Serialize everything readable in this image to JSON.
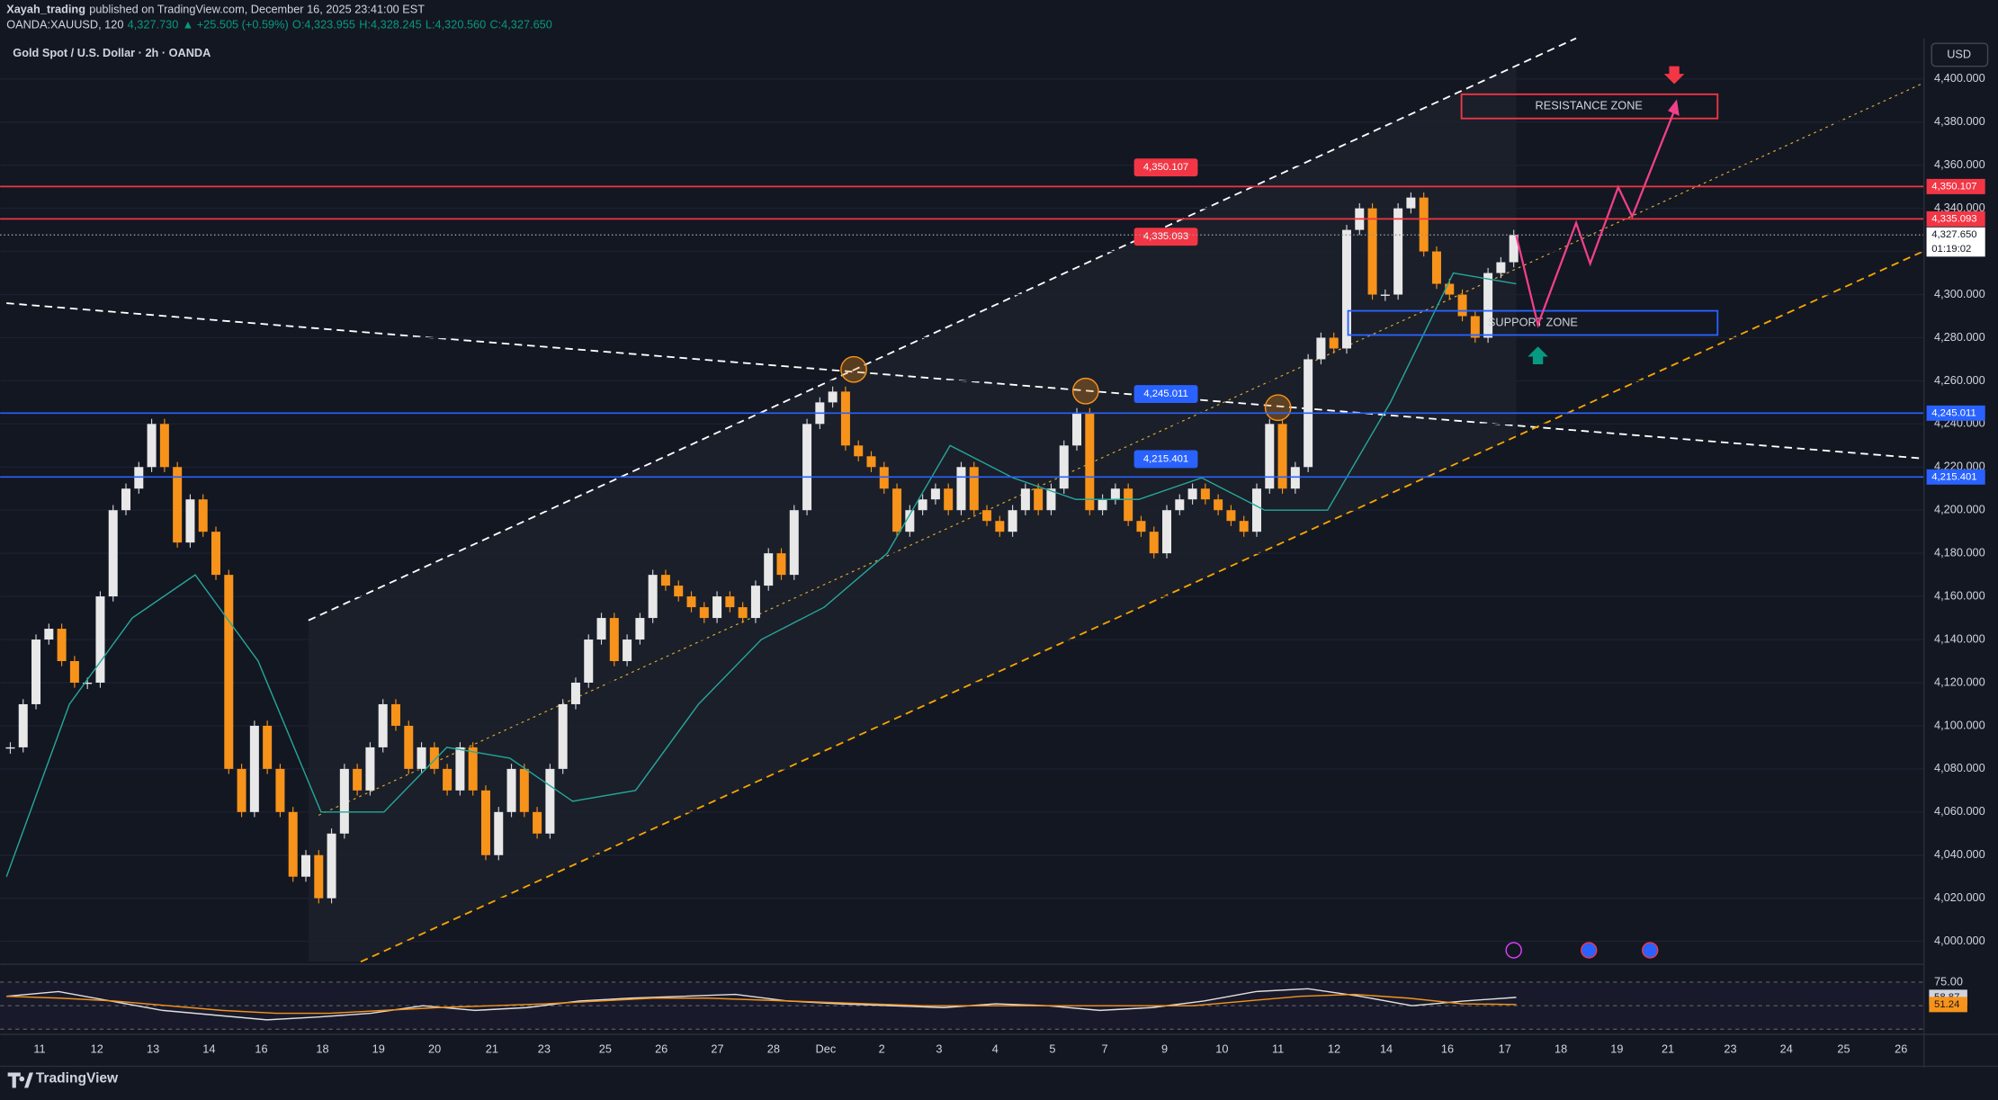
{
  "header": {
    "publisher": "Xayah_trading",
    "published": "published on TradingView.com, December 16, 2025 23:41:00 EST",
    "symbol": "OANDA:XAUUSD, 120",
    "last": "4,327.730",
    "change": "▲ +25.505 (+0.59%)",
    "open": "O:4,323.955",
    "high": "H:4,328.245",
    "low": "L:4,320.560",
    "close": "C:4,327.650"
  },
  "chart": {
    "title": "Gold Spot / U.S. Dollar · 2h · OANDA",
    "currency": "USD",
    "yticks": [
      {
        "value": 4000,
        "label": "4,000.000"
      },
      {
        "value": 4020,
        "label": "4,020.000"
      },
      {
        "value": 4040,
        "label": "4,040.000"
      },
      {
        "value": 4060,
        "label": "4,060.000"
      },
      {
        "value": 4080,
        "label": "4,080.000"
      },
      {
        "value": 4100,
        "label": "4,100.000"
      },
      {
        "value": 4120,
        "label": "4,120.000"
      },
      {
        "value": 4140,
        "label": "4,140.000"
      },
      {
        "value": 4160,
        "label": "4,160.000"
      },
      {
        "value": 4180,
        "label": "4,180.000"
      },
      {
        "value": 4200,
        "label": "4,200.000"
      },
      {
        "value": 4220,
        "label": "4,220.000"
      },
      {
        "value": 4240,
        "label": "4,240.000"
      },
      {
        "value": 4260,
        "label": "4,260.000"
      },
      {
        "value": 4280,
        "label": "4,280.000"
      },
      {
        "value": 4300,
        "label": "4,300.000"
      },
      {
        "value": 4320,
        "label": "4,320.000"
      },
      {
        "value": 4340,
        "label": "4,340.000"
      },
      {
        "value": 4360,
        "label": "4,360.000"
      },
      {
        "value": 4380,
        "label": "4,380.000"
      },
      {
        "value": 4400,
        "label": "4,400.000"
      }
    ],
    "levels": [
      {
        "value": 4350.107,
        "label": "4,350.107",
        "color": "#f23645"
      },
      {
        "value": 4335.093,
        "label": "4,335.093",
        "color": "#f23645"
      },
      {
        "value": 4245.011,
        "label": "4,245.011",
        "color": "#2962ff"
      },
      {
        "value": 4215.401,
        "label": "4,215.401",
        "color": "#2962ff"
      }
    ],
    "last_price": {
      "value": 4327.65,
      "label": "4,327.650"
    },
    "countdown": "01:19:02",
    "resistance": "RESISTANCE ZONE",
    "support": "SUPPORT ZONE",
    "closes": [
      4090,
      4110,
      4140,
      4145,
      4130,
      4120,
      4120,
      4160,
      4200,
      4210,
      4220,
      4240,
      4220,
      4185,
      4205,
      4190,
      4170,
      4080,
      4060,
      4100,
      4080,
      4060,
      4030,
      4040,
      4020,
      4050,
      4080,
      4070,
      4090,
      4110,
      4100,
      4080,
      4090,
      4080,
      4070,
      4090,
      4070,
      4040,
      4060,
      4080,
      4060,
      4050,
      4080,
      4110,
      4120,
      4140,
      4150,
      4130,
      4140,
      4150,
      4170,
      4165,
      4160,
      4155,
      4150,
      4160,
      4155,
      4150,
      4165,
      4180,
      4170,
      4200,
      4240,
      4250,
      4255,
      4230,
      4225,
      4220,
      4210,
      4190,
      4200,
      4205,
      4210,
      4200,
      4220,
      4200,
      4195,
      4190,
      4200,
      4210,
      4200,
      4210,
      4230,
      4245,
      4200,
      4205,
      4210,
      4195,
      4190,
      4180,
      4200,
      4205,
      4210,
      4205,
      4200,
      4195,
      4190,
      4210,
      4240,
      4210,
      4220,
      4270,
      4280,
      4275,
      4330,
      4340,
      4300,
      4300,
      4340,
      4345,
      4320,
      4305,
      4300,
      4290,
      4280,
      4310,
      4315,
      4327.65
    ],
    "ema": [
      4030,
      4110,
      4150,
      4170,
      4130,
      4060,
      4060,
      4090,
      4085,
      4065,
      4070,
      4110,
      4140,
      4155,
      4180,
      4230,
      4215,
      4205,
      4205,
      4215,
      4200,
      4200,
      4250,
      4310,
      4305
    ],
    "x_labels": [
      "11",
      "12",
      "13",
      "14",
      "16",
      "18",
      "19",
      "20",
      "21",
      "23",
      "25",
      "26",
      "27",
      "28",
      "Dec",
      "2",
      "3",
      "4",
      "5",
      "7",
      "9",
      "10",
      "11",
      "12",
      "14",
      "16",
      "17",
      "18",
      "19",
      "21",
      "23",
      "24",
      "25",
      "26"
    ]
  },
  "rsi": {
    "level": {
      "value": 75,
      "label": "75.00"
    },
    "values": [
      60,
      65,
      55,
      45,
      40,
      35,
      38,
      42,
      50,
      45,
      48,
      55,
      58,
      60,
      62,
      55,
      52,
      50,
      48,
      52,
      50,
      45,
      48,
      55,
      65,
      68,
      60,
      50,
      55,
      58.87
    ],
    "value_label": "58.87",
    "ma": [
      60,
      58,
      55,
      50,
      45,
      42,
      42,
      45,
      48,
      50,
      52,
      55,
      58,
      58,
      56,
      54,
      52,
      50,
      50,
      50,
      50,
      50,
      50,
      55,
      60,
      62,
      58,
      52,
      51.24
    ],
    "ma_label": "51.24"
  },
  "footer": {
    "brand": "TradingView"
  }
}
